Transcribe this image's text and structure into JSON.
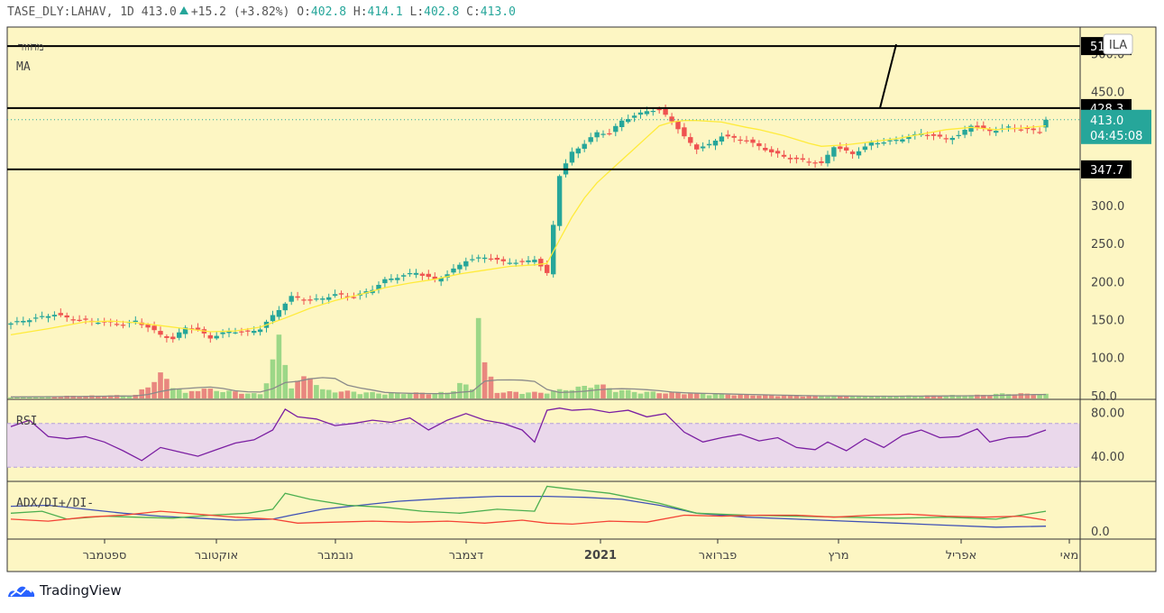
{
  "header": {
    "symbol": "TASE_DLY:LAHAV, 1D",
    "last": "413.0",
    "change": "+15.2 (+3.82%)",
    "open_label": "O:",
    "open": "402.8",
    "high_label": "H:",
    "high": "414.1",
    "low_label": "L:",
    "low": "402.8",
    "close_label": "C:",
    "close": "413.0"
  },
  "panes": {
    "main_labels": [
      "מחזור",
      "MA"
    ],
    "rsi_label": "RSI",
    "adx_label": "ADX/DI+/DI-",
    "currency_badge": "ILA"
  },
  "brand": "TradingView",
  "colors": {
    "background": "#fdf6c3",
    "up": "#26a69a",
    "down": "#ef5350",
    "ma": "#ffeb3b",
    "rsi": "#7b1fa2",
    "rsi_band": "#e8d5f0",
    "adx": "#3f51b5",
    "di_plus": "#4caf50",
    "di_minus": "#f44336"
  },
  "chart_data": [
    {
      "type": "candlestick",
      "title": "TASE_DLY:LAHAV, 1D",
      "x_axis_labels": [
        "ספטמבר",
        "אוקטובר",
        "נובמבר",
        "דצמבר",
        "2021",
        "פברואר",
        "מרץ",
        "אפריל",
        "מאי"
      ],
      "y_ticks": [
        50.0,
        100.0,
        150.0,
        200.0,
        250.0,
        300.0,
        350.0,
        400.0,
        450.0,
        500.0
      ],
      "y_tick_labels": [
        "50.0",
        "100.0",
        "150.0",
        "200.0",
        "250.0",
        "300.0",
        "350.0",
        "400.0",
        "450.0",
        "500.0"
      ],
      "ylim": [
        45,
        535
      ],
      "horizontal_levels": [
        {
          "value": 510.0,
          "label": "510.0"
        },
        {
          "value": 428.3,
          "label": "428.3"
        },
        {
          "value": 347.7,
          "label": "347.7"
        }
      ],
      "last_price": {
        "value": 413.0,
        "label": "413.0",
        "countdown": "04:45:08"
      },
      "price_path": [
        [
          0,
          145
        ],
        [
          4,
          152
        ],
        [
          7,
          157
        ],
        [
          10,
          150
        ],
        [
          14,
          147
        ],
        [
          18,
          144
        ],
        [
          20,
          148
        ],
        [
          22,
          140
        ],
        [
          24,
          130
        ],
        [
          26,
          124
        ],
        [
          28,
          140
        ],
        [
          30,
          136
        ],
        [
          32,
          126
        ],
        [
          35,
          135
        ],
        [
          38,
          133
        ],
        [
          40,
          138
        ],
        [
          42,
          155
        ],
        [
          45,
          180
        ],
        [
          48,
          175
        ],
        [
          50,
          178
        ],
        [
          52,
          183
        ],
        [
          55,
          180
        ],
        [
          58,
          190
        ],
        [
          60,
          202
        ],
        [
          65,
          212
        ],
        [
          68,
          202
        ],
        [
          70,
          210
        ],
        [
          73,
          228
        ],
        [
          76,
          232
        ],
        [
          79,
          226
        ],
        [
          82,
          225
        ],
        [
          84,
          230
        ],
        [
          86,
          210
        ],
        [
          88,
          340
        ],
        [
          90,
          370
        ],
        [
          92,
          382
        ],
        [
          94,
          396
        ],
        [
          96,
          395
        ],
        [
          98,
          412
        ],
        [
          100,
          418
        ],
        [
          102,
          425
        ],
        [
          104,
          426
        ],
        [
          106,
          412
        ],
        [
          108,
          390
        ],
        [
          110,
          375
        ],
        [
          112,
          380
        ],
        [
          114,
          392
        ],
        [
          118,
          385
        ],
        [
          120,
          378
        ],
        [
          122,
          370
        ],
        [
          125,
          362
        ],
        [
          128,
          358
        ],
        [
          130,
          355
        ],
        [
          132,
          378
        ],
        [
          135,
          368
        ],
        [
          138,
          382
        ],
        [
          142,
          386
        ],
        [
          146,
          395
        ],
        [
          150,
          388
        ],
        [
          152,
          392
        ],
        [
          154,
          406
        ],
        [
          157,
          398
        ],
        [
          160,
          403
        ],
        [
          163,
          400
        ],
        [
          165,
          397
        ],
        [
          166,
          413
        ]
      ],
      "ma_path": [
        [
          0,
          130
        ],
        [
          6,
          138
        ],
        [
          12,
          147
        ],
        [
          16,
          148
        ],
        [
          20,
          146
        ],
        [
          24,
          142
        ],
        [
          28,
          138
        ],
        [
          32,
          134
        ],
        [
          36,
          135
        ],
        [
          40,
          140
        ],
        [
          44,
          152
        ],
        [
          48,
          165
        ],
        [
          52,
          175
        ],
        [
          56,
          183
        ],
        [
          60,
          192
        ],
        [
          64,
          198
        ],
        [
          68,
          203
        ],
        [
          72,
          210
        ],
        [
          76,
          215
        ],
        [
          80,
          220
        ],
        [
          84,
          222
        ],
        [
          86,
          224
        ],
        [
          88,
          255
        ],
        [
          90,
          285
        ],
        [
          92,
          310
        ],
        [
          94,
          330
        ],
        [
          96,
          345
        ],
        [
          98,
          360
        ],
        [
          100,
          375
        ],
        [
          102,
          390
        ],
        [
          104,
          405
        ],
        [
          106,
          410
        ],
        [
          108,
          412
        ],
        [
          110,
          412
        ],
        [
          114,
          410
        ],
        [
          118,
          403
        ],
        [
          120,
          400
        ],
        [
          124,
          392
        ],
        [
          128,
          382
        ],
        [
          130,
          378
        ],
        [
          134,
          380
        ],
        [
          138,
          384
        ],
        [
          142,
          388
        ],
        [
          146,
          394
        ],
        [
          150,
          400
        ],
        [
          154,
          403
        ],
        [
          158,
          400
        ],
        [
          162,
          402
        ],
        [
          166,
          405
        ]
      ],
      "volume_path": [
        [
          0,
          2
        ],
        [
          10,
          3
        ],
        [
          20,
          4
        ],
        [
          24,
          28
        ],
        [
          28,
          6
        ],
        [
          30,
          12
        ],
        [
          40,
          5
        ],
        [
          43,
          68
        ],
        [
          45,
          16
        ],
        [
          48,
          28
        ],
        [
          50,
          10
        ],
        [
          60,
          6
        ],
        [
          70,
          7
        ],
        [
          72,
          18
        ],
        [
          74,
          12
        ],
        [
          75,
          120
        ],
        [
          76,
          40
        ],
        [
          78,
          8
        ],
        [
          85,
          7
        ],
        [
          88,
          10
        ],
        [
          92,
          14
        ],
        [
          94,
          18
        ],
        [
          96,
          12
        ],
        [
          100,
          8
        ],
        [
          110,
          6
        ],
        [
          120,
          4
        ],
        [
          130,
          3
        ],
        [
          140,
          3
        ],
        [
          155,
          4
        ],
        [
          160,
          6
        ],
        [
          166,
          5
        ]
      ],
      "volume_scale_max": 120
    },
    {
      "type": "line",
      "title": "RSI",
      "y_ticks": [
        40.0,
        80.0
      ],
      "y_tick_labels": [
        "40.00",
        "80.00"
      ],
      "ylim": [
        17,
        92
      ],
      "band": [
        30,
        70
      ],
      "series": [
        {
          "values": [
            [
              0,
              67
            ],
            [
              3,
              73
            ],
            [
              6,
              58
            ],
            [
              9,
              56
            ],
            [
              12,
              58
            ],
            [
              15,
              53
            ],
            [
              18,
              45
            ],
            [
              21,
              36
            ],
            [
              24,
              48
            ],
            [
              27,
              44
            ],
            [
              30,
              40
            ],
            [
              33,
              46
            ],
            [
              36,
              52
            ],
            [
              39,
              55
            ],
            [
              42,
              64
            ],
            [
              44,
              83
            ],
            [
              46,
              76
            ],
            [
              49,
              74
            ],
            [
              52,
              68
            ],
            [
              55,
              70
            ],
            [
              58,
              73
            ],
            [
              61,
              71
            ],
            [
              64,
              75
            ],
            [
              67,
              64
            ],
            [
              70,
              73
            ],
            [
              73,
              79
            ],
            [
              76,
              73
            ],
            [
              79,
              70
            ],
            [
              82,
              64
            ],
            [
              84,
              53
            ],
            [
              86,
              82
            ],
            [
              88,
              84
            ],
            [
              90,
              82
            ],
            [
              93,
              83
            ],
            [
              96,
              80
            ],
            [
              99,
              82
            ],
            [
              102,
              76
            ],
            [
              105,
              79
            ],
            [
              108,
              62
            ],
            [
              111,
              53
            ],
            [
              114,
              57
            ],
            [
              117,
              60
            ],
            [
              120,
              54
            ],
            [
              123,
              57
            ],
            [
              126,
              48
            ],
            [
              129,
              46
            ],
            [
              131,
              53
            ],
            [
              134,
              45
            ],
            [
              137,
              56
            ],
            [
              140,
              48
            ],
            [
              143,
              59
            ],
            [
              146,
              64
            ],
            [
              149,
              57
            ],
            [
              152,
              58
            ],
            [
              155,
              65
            ],
            [
              157,
              53
            ],
            [
              160,
              57
            ],
            [
              163,
              58
            ],
            [
              166,
              64
            ]
          ]
        }
      ]
    },
    {
      "type": "line",
      "title": "ADX/DI+/DI-",
      "y_ticks": [
        0.0
      ],
      "y_tick_labels": [
        "0.0"
      ],
      "ylim": [
        -8,
        50
      ],
      "series": [
        {
          "values": [
            [
              0,
              25
            ],
            [
              6,
              26
            ],
            [
              12,
              22
            ],
            [
              18,
              18
            ],
            [
              24,
              15
            ],
            [
              30,
              13
            ],
            [
              36,
              11
            ],
            [
              42,
              12
            ],
            [
              45,
              16
            ],
            [
              50,
              22
            ],
            [
              56,
              26
            ],
            [
              62,
              30
            ],
            [
              70,
              33
            ],
            [
              78,
              35
            ],
            [
              86,
              35
            ],
            [
              92,
              34
            ],
            [
              98,
              32
            ],
            [
              104,
              26
            ],
            [
              110,
              18
            ],
            [
              118,
              14
            ],
            [
              126,
              12
            ],
            [
              134,
              10
            ],
            [
              142,
              8
            ],
            [
              150,
              6
            ],
            [
              158,
              4
            ],
            [
              166,
              5
            ]
          ]
        },
        {
          "values": [
            [
              0,
              18
            ],
            [
              5,
              20
            ],
            [
              9,
              12
            ],
            [
              15,
              15
            ],
            [
              20,
              14
            ],
            [
              26,
              13
            ],
            [
              32,
              16
            ],
            [
              38,
              18
            ],
            [
              42,
              22
            ],
            [
              44,
              38
            ],
            [
              48,
              32
            ],
            [
              54,
              26
            ],
            [
              60,
              24
            ],
            [
              66,
              20
            ],
            [
              72,
              18
            ],
            [
              78,
              22
            ],
            [
              84,
              20
            ],
            [
              86,
              45
            ],
            [
              90,
              42
            ],
            [
              96,
              38
            ],
            [
              104,
              28
            ],
            [
              110,
              18
            ],
            [
              118,
              16
            ],
            [
              126,
              15
            ],
            [
              134,
              14
            ],
            [
              142,
              13
            ],
            [
              150,
              14
            ],
            [
              158,
              12
            ],
            [
              166,
              20
            ]
          ]
        },
        {
          "values": [
            [
              0,
              12
            ],
            [
              6,
              10
            ],
            [
              12,
              14
            ],
            [
              18,
              16
            ],
            [
              24,
              20
            ],
            [
              30,
              17
            ],
            [
              36,
              14
            ],
            [
              42,
              12
            ],
            [
              46,
              8
            ],
            [
              52,
              9
            ],
            [
              58,
              10
            ],
            [
              64,
              9
            ],
            [
              70,
              10
            ],
            [
              76,
              8
            ],
            [
              82,
              11
            ],
            [
              86,
              8
            ],
            [
              90,
              7
            ],
            [
              96,
              10
            ],
            [
              102,
              9
            ],
            [
              108,
              16
            ],
            [
              114,
              15
            ],
            [
              120,
              16
            ],
            [
              126,
              16
            ],
            [
              132,
              14
            ],
            [
              138,
              16
            ],
            [
              144,
              17
            ],
            [
              150,
              15
            ],
            [
              156,
              14
            ],
            [
              162,
              15
            ],
            [
              166,
              11
            ]
          ]
        }
      ]
    }
  ]
}
